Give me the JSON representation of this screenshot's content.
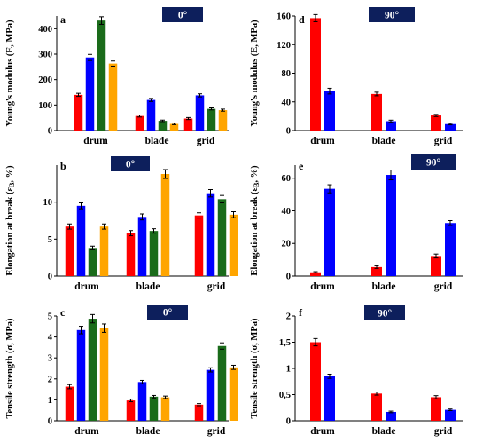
{
  "series_colors": [
    "#ff0000",
    "#0000ff",
    "#1a6b1a",
    "#ffa500"
  ],
  "badge_color": "#0d1f5c",
  "chart_data": [
    {
      "id": "a",
      "type": "bar",
      "panel_label": "a",
      "badge": "0°",
      "ylabel": "Young's modulus (E, MPa)",
      "categories": [
        "drum",
        "blade",
        "grid"
      ],
      "ylim": [
        0,
        450
      ],
      "yticks": [
        0,
        100,
        200,
        300,
        400
      ],
      "ytick_labels": [
        "0",
        "100",
        "200",
        "300",
        "400"
      ],
      "series": [
        {
          "values": [
            140,
            57,
            47
          ],
          "errors": [
            6,
            4,
            4
          ]
        },
        {
          "values": [
            287,
            120,
            138
          ],
          "errors": [
            12,
            6,
            6
          ]
        },
        {
          "values": [
            432,
            38,
            85
          ],
          "errors": [
            15,
            3,
            4
          ]
        },
        {
          "values": [
            263,
            26,
            80
          ],
          "errors": [
            10,
            3,
            4
          ]
        }
      ]
    },
    {
      "id": "d",
      "type": "bar",
      "panel_label": "d",
      "badge": "90°",
      "ylabel": "Young's modulus (E, MPa)",
      "categories": [
        "drum",
        "blade",
        "grid"
      ],
      "ylim": [
        0,
        160
      ],
      "yticks": [
        0,
        40,
        80,
        120,
        160
      ],
      "ytick_labels": [
        "0",
        "40",
        "80",
        "120",
        "160"
      ],
      "series": [
        {
          "values": [
            157,
            51,
            21
          ],
          "errors": [
            5,
            2.5,
            1.5
          ]
        },
        {
          "values": [
            55,
            13,
            9
          ],
          "errors": [
            4,
            1.5,
            1
          ]
        }
      ]
    },
    {
      "id": "b",
      "type": "bar",
      "panel_label": "b",
      "badge": "0°",
      "ylabel": "Elongation at break (εB, %)",
      "categories": [
        "drum",
        "blade",
        "grid"
      ],
      "ylim": [
        0,
        15
      ],
      "yticks": [
        0,
        5,
        10
      ],
      "ytick_labels": [
        "0",
        "5",
        "10"
      ],
      "series": [
        {
          "values": [
            6.7,
            5.8,
            8.2
          ],
          "errors": [
            0.35,
            0.35,
            0.35
          ]
        },
        {
          "values": [
            9.5,
            8.0,
            11.2
          ],
          "errors": [
            0.4,
            0.4,
            0.5
          ]
        },
        {
          "values": [
            3.8,
            6.1,
            10.4
          ],
          "errors": [
            0.25,
            0.3,
            0.5
          ]
        },
        {
          "values": [
            6.7,
            13.8,
            8.3
          ],
          "errors": [
            0.35,
            0.6,
            0.4
          ]
        }
      ]
    },
    {
      "id": "e",
      "type": "bar",
      "panel_label": "e",
      "badge": "90°",
      "ylabel": "Elongation at break (εB, %)",
      "categories": [
        "drum",
        "blade",
        "grid"
      ],
      "ylim": [
        0,
        68
      ],
      "yticks": [
        0,
        20,
        40,
        60
      ],
      "ytick_labels": [
        "0",
        "20",
        "40",
        "60"
      ],
      "series": [
        {
          "values": [
            2.3,
            5.5,
            12.3
          ],
          "errors": [
            0.4,
            0.8,
            1.2
          ]
        },
        {
          "values": [
            53.5,
            62,
            32.5
          ],
          "errors": [
            2.5,
            3,
            1.5
          ]
        }
      ]
    },
    {
      "id": "c",
      "type": "bar",
      "panel_label": "c",
      "badge": "0°",
      "ylabel": "Tensile strength (σ, MPa)",
      "categories": [
        "drum",
        "blade",
        "grid"
      ],
      "ylim": [
        0,
        5
      ],
      "yticks": [
        0,
        1,
        2,
        3,
        4,
        5
      ],
      "ytick_labels": [
        "0",
        "1",
        "2",
        "3",
        "4",
        "5"
      ],
      "series": [
        {
          "values": [
            1.63,
            0.97,
            0.77
          ],
          "errors": [
            0.1,
            0.06,
            0.05
          ]
        },
        {
          "values": [
            4.33,
            1.85,
            2.43
          ],
          "errors": [
            0.18,
            0.08,
            0.1
          ]
        },
        {
          "values": [
            4.87,
            1.15,
            3.57
          ],
          "errors": [
            0.2,
            0.06,
            0.15
          ]
        },
        {
          "values": [
            4.42,
            1.12,
            2.55
          ],
          "errors": [
            0.2,
            0.06,
            0.1
          ]
        }
      ]
    },
    {
      "id": "f",
      "type": "bar",
      "panel_label": "f",
      "badge": "90°",
      "ylabel": "Tensile strength (σ, MPa)",
      "categories": [
        "drum",
        "blade",
        "grid"
      ],
      "ylim": [
        0,
        2
      ],
      "yticks": [
        0,
        0.5,
        1,
        1.5,
        2
      ],
      "ytick_labels": [
        "0",
        "0,5",
        "1",
        "1,5",
        "2"
      ],
      "series": [
        {
          "values": [
            1.5,
            0.52,
            0.45
          ],
          "errors": [
            0.07,
            0.03,
            0.03
          ]
        },
        {
          "values": [
            0.85,
            0.17,
            0.21
          ],
          "errors": [
            0.04,
            0.015,
            0.015
          ]
        }
      ]
    }
  ]
}
